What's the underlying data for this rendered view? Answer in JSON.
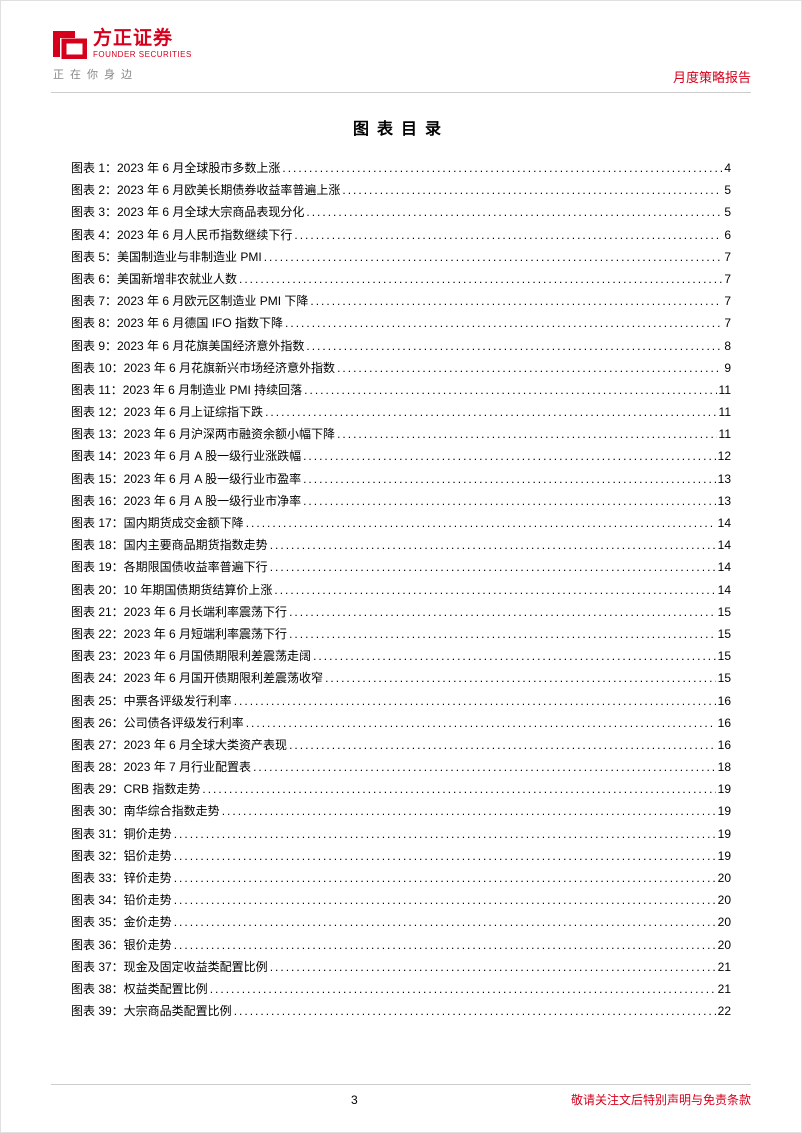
{
  "header": {
    "logo_cn": "方正证券",
    "logo_en": "FOUNDER SECURITIES",
    "tagline": "正在你身边",
    "report_type": "月度策略报告"
  },
  "toc": {
    "title": "图表目录",
    "entries": [
      {
        "label": "图表 1：2023 年 6 月全球股市多数上涨",
        "page": "4"
      },
      {
        "label": "图表 2：2023 年 6 月欧美长期债券收益率普遍上涨",
        "page": "5"
      },
      {
        "label": "图表 3：2023 年 6 月全球大宗商品表现分化",
        "page": "5"
      },
      {
        "label": "图表 4：2023 年 6 月人民币指数继续下行",
        "page": "6"
      },
      {
        "label": "图表 5：美国制造业与非制造业 PMI",
        "page": "7"
      },
      {
        "label": "图表 6：美国新增非农就业人数",
        "page": "7"
      },
      {
        "label": "图表 7：2023 年 6 月欧元区制造业 PMI 下降",
        "page": "7"
      },
      {
        "label": "图表 8：2023 年 6 月德国 IFO 指数下降",
        "page": "7"
      },
      {
        "label": "图表 9：2023 年 6 月花旗美国经济意外指数",
        "page": "8"
      },
      {
        "label": "图表 10：2023 年 6 月花旗新兴市场经济意外指数",
        "page": "9"
      },
      {
        "label": "图表 11：2023 年 6 月制造业 PMI 持续回落",
        "page": "11"
      },
      {
        "label": "图表 12：2023 年 6 月上证综指下跌",
        "page": "11"
      },
      {
        "label": "图表 13：2023 年 6 月沪深两市融资余额小幅下降",
        "page": "11"
      },
      {
        "label": "图表 14：2023 年 6 月 A 股一级行业涨跌幅",
        "page": "12"
      },
      {
        "label": "图表 15：2023 年 6 月 A 股一级行业市盈率",
        "page": "13"
      },
      {
        "label": "图表 16：2023 年 6 月 A 股一级行业市净率",
        "page": "13"
      },
      {
        "label": "图表 17：国内期货成交金额下降",
        "page": "14"
      },
      {
        "label": "图表 18：国内主要商品期货指数走势",
        "page": "14"
      },
      {
        "label": "图表 19：各期限国债收益率普遍下行",
        "page": "14"
      },
      {
        "label": "图表 20：10 年期国债期货结算价上涨",
        "page": "14"
      },
      {
        "label": "图表 21：2023 年 6 月长端利率震荡下行",
        "page": "15"
      },
      {
        "label": "图表 22：2023 年 6 月短端利率震荡下行",
        "page": "15"
      },
      {
        "label": "图表 23：2023 年 6 月国债期限利差震荡走阔",
        "page": "15"
      },
      {
        "label": "图表 24：2023 年 6 月国开债期限利差震荡收窄",
        "page": "15"
      },
      {
        "label": "图表 25：中票各评级发行利率",
        "page": "16"
      },
      {
        "label": "图表 26：公司债各评级发行利率",
        "page": "16"
      },
      {
        "label": "图表 27：2023 年 6 月全球大类资产表现",
        "page": "16"
      },
      {
        "label": "图表 28：2023 年 7 月行业配置表",
        "page": "18"
      },
      {
        "label": "图表 29：CRB 指数走势",
        "page": "19"
      },
      {
        "label": "图表 30：南华综合指数走势",
        "page": "19"
      },
      {
        "label": "图表 31：铜价走势",
        "page": "19"
      },
      {
        "label": "图表 32：铝价走势",
        "page": "19"
      },
      {
        "label": "图表 33：锌价走势",
        "page": "20"
      },
      {
        "label": "图表 34：铅价走势",
        "page": "20"
      },
      {
        "label": "图表 35：金价走势",
        "page": "20"
      },
      {
        "label": "图表 36：银价走势",
        "page": "20"
      },
      {
        "label": "图表 37：现金及固定收益类配置比例",
        "page": "21"
      },
      {
        "label": "图表 38：权益类配置比例",
        "page": "21"
      },
      {
        "label": "图表 39：大宗商品类配置比例",
        "page": "22"
      }
    ]
  },
  "footer": {
    "page_number": "3",
    "note": "敬请关注文后特别声明与免责条款"
  },
  "colors": {
    "brand_red": "#d6001c",
    "text_black": "#000000",
    "tagline_gray": "#888888",
    "rule_gray": "#cccccc",
    "background": "#ffffff"
  }
}
